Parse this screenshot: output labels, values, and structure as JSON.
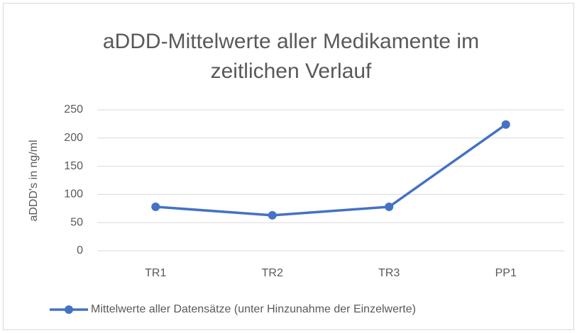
{
  "chart_data": {
    "type": "line",
    "title": "aDDD-Mittelwerte aller Medikamente im zeitlichen Verlauf",
    "y_label": "aDDD's in ng/ml",
    "categories": [
      "TR1",
      "TR2",
      "TR3",
      "PP1"
    ],
    "series": [
      {
        "name": "Mittelwerte aller Datensätze (unter Hinzunahme der Einzelwerte)",
        "color": "#4472c4",
        "values": [
          78,
          63,
          78,
          224
        ]
      }
    ],
    "ylim": [
      0,
      250
    ],
    "yticks": [
      0,
      50,
      100,
      150,
      200,
      250
    ],
    "grid": true,
    "legend": "bottom"
  }
}
